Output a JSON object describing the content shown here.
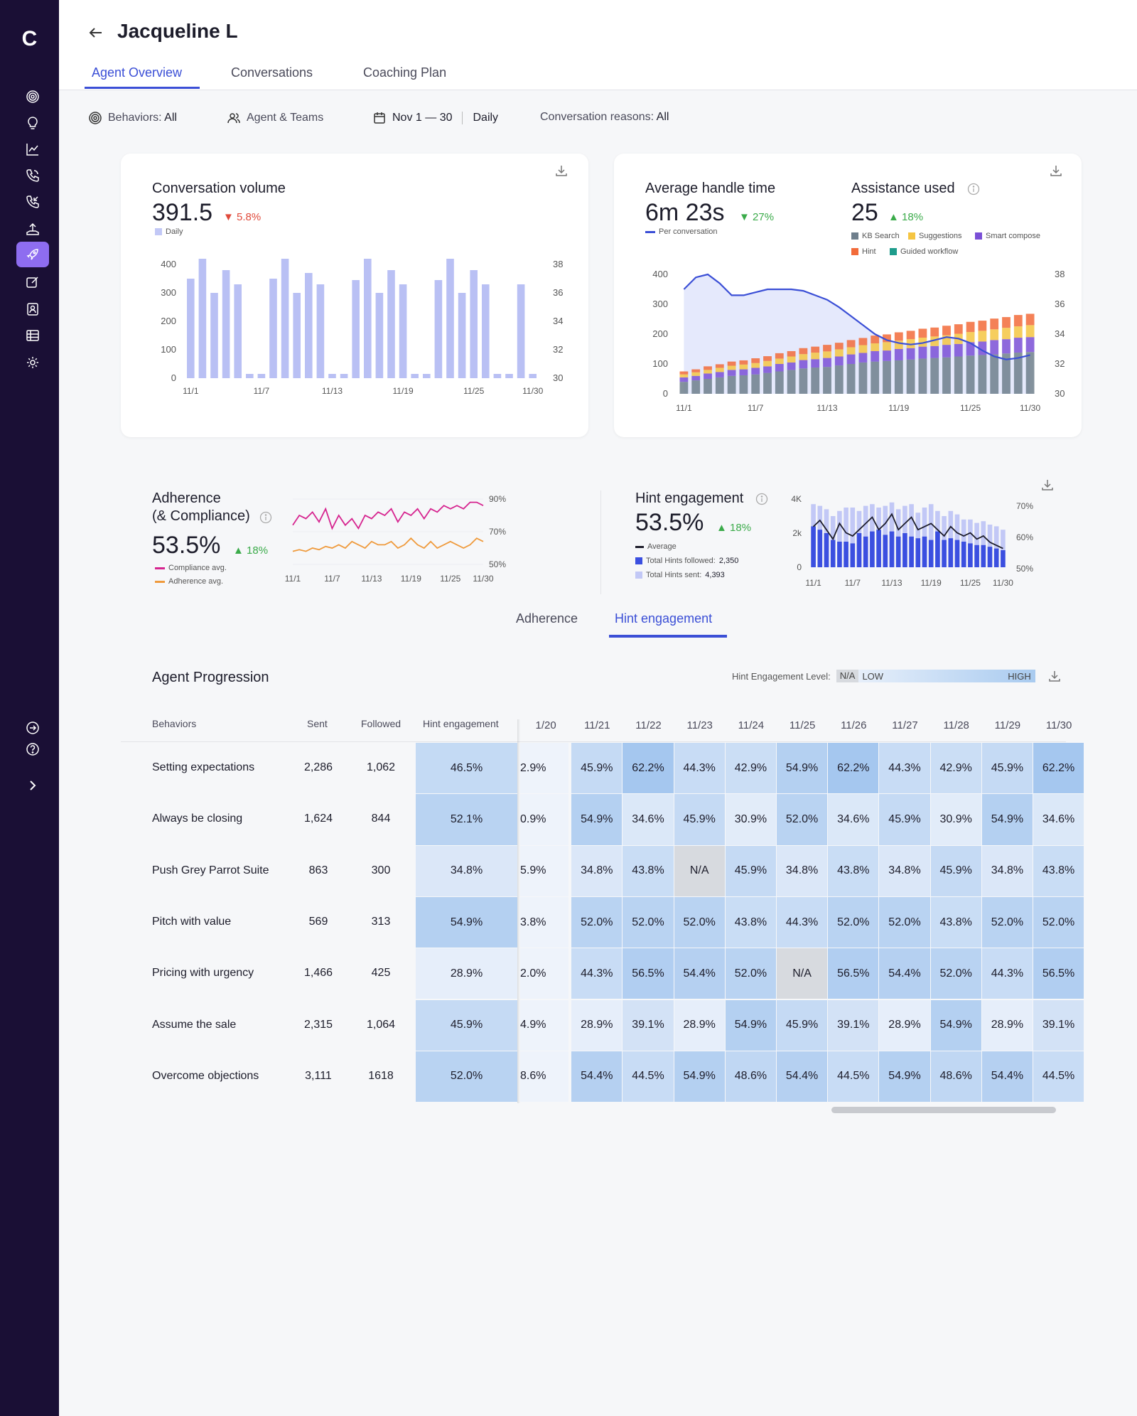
{
  "app": {
    "logo": "C"
  },
  "header": {
    "agent_name": "Jacqueline L",
    "tabs": [
      "Agent Overview",
      "Conversations",
      "Coaching Plan"
    ]
  },
  "filters": {
    "behaviors_label": "Behaviors:",
    "behaviors_value": "All",
    "agent_teams": "Agent & Teams",
    "date_range": "Nov 1 — 30",
    "granularity": "Daily",
    "reasons_label": "Conversation reasons:",
    "reasons_value": "All"
  },
  "conversation_volume": {
    "title": "Conversation volume",
    "value": "391.5",
    "delta": "5.8%",
    "legend": "Daily",
    "chart_data": {
      "type": "bar",
      "x": [
        "11/1",
        "11/2",
        "11/3",
        "11/4",
        "11/5",
        "11/6",
        "11/7",
        "11/8",
        "11/9",
        "11/10",
        "11/11",
        "11/12",
        "11/13",
        "11/14",
        "11/15",
        "11/16",
        "11/17",
        "11/18",
        "11/19",
        "11/20",
        "11/21",
        "11/22",
        "11/23",
        "11/24",
        "11/25",
        "11/26",
        "11/27",
        "11/28",
        "11/29",
        "11/30"
      ],
      "values": [
        350,
        420,
        300,
        380,
        330,
        15,
        15,
        350,
        420,
        300,
        370,
        330,
        15,
        15,
        345,
        420,
        300,
        380,
        330,
        15,
        15,
        345,
        420,
        300,
        380,
        330,
        15,
        15,
        330,
        15
      ],
      "xticks": [
        "11/1",
        "11/7",
        "11/13",
        "11/19",
        "11/25",
        "11/30"
      ],
      "yticks_left": [
        "400",
        "300",
        "200",
        "100",
        "0"
      ],
      "yticks_right": [
        "38",
        "36",
        "34",
        "32",
        "30"
      ],
      "ylim": [
        0,
        400
      ]
    }
  },
  "handle_time": {
    "title": "Average handle time",
    "value": "6m 23s",
    "delta": "27%",
    "legend": "Per conversation",
    "assist_title": "Assistance used",
    "assist_value": "25",
    "assist_delta": "18%",
    "legend_items": [
      "KB Search",
      "Suggestions",
      "Smart compose",
      "Hint",
      "Guided workflow"
    ],
    "colors": {
      "kb": "#6f7f8c",
      "suggestions": "#f5c542",
      "smart": "#7a4fd6",
      "hint": "#f26b3a",
      "guided": "#1e9c8c",
      "line": "#3b4fd6"
    },
    "chart_data": {
      "type": "bar",
      "x": [
        "11/1",
        "11/2",
        "11/3",
        "11/4",
        "11/5",
        "11/6",
        "11/7",
        "11/8",
        "11/9",
        "11/10",
        "11/11",
        "11/12",
        "11/13",
        "11/14",
        "11/15",
        "11/16",
        "11/17",
        "11/18",
        "11/19",
        "11/20",
        "11/21",
        "11/22",
        "11/23",
        "11/24",
        "11/25",
        "11/26",
        "11/27",
        "11/28",
        "11/29",
        "11/30"
      ],
      "series": [
        {
          "name": "KB Search",
          "values": [
            40,
            45,
            50,
            55,
            60,
            62,
            65,
            70,
            75,
            80,
            85,
            88,
            90,
            95,
            100,
            105,
            108,
            110,
            112,
            115,
            118,
            120,
            122,
            125,
            128,
            130,
            132,
            135,
            138,
            140
          ]
        },
        {
          "name": "Smart compose",
          "values": [
            15,
            15,
            18,
            18,
            20,
            20,
            22,
            22,
            25,
            25,
            28,
            28,
            30,
            30,
            32,
            32,
            35,
            35,
            38,
            38,
            40,
            40,
            42,
            42,
            45,
            45,
            48,
            48,
            50,
            50
          ]
        },
        {
          "name": "Suggestions",
          "values": [
            10,
            12,
            12,
            14,
            14,
            16,
            16,
            18,
            18,
            20,
            20,
            22,
            22,
            24,
            24,
            26,
            26,
            28,
            28,
            30,
            30,
            32,
            32,
            34,
            34,
            36,
            36,
            38,
            38,
            40
          ]
        },
        {
          "name": "Hint",
          "values": [
            10,
            10,
            12,
            12,
            14,
            14,
            16,
            16,
            18,
            18,
            20,
            20,
            22,
            22,
            24,
            24,
            26,
            26,
            28,
            28,
            30,
            30,
            32,
            32,
            34,
            34,
            36,
            36,
            38,
            38
          ]
        }
      ],
      "line_values": [
        37,
        37.8,
        38,
        37.4,
        36.6,
        36.6,
        36.8,
        37,
        37,
        37,
        36.9,
        36.6,
        36.3,
        35.8,
        35.2,
        34.6,
        34,
        33.6,
        33.4,
        33.3,
        33.4,
        33.6,
        33.8,
        33.7,
        33.4,
        32.9,
        32.5,
        32.3,
        32.4,
        32.6
      ],
      "xticks": [
        "11/1",
        "11/7",
        "11/13",
        "11/19",
        "11/25",
        "11/30"
      ],
      "yticks_left": [
        "400",
        "300",
        "200",
        "100",
        "0"
      ],
      "yticks_right": [
        "38",
        "36",
        "34",
        "32",
        "30"
      ],
      "ylim": [
        0,
        400
      ],
      "y2lim": [
        30,
        38
      ]
    }
  },
  "adherence": {
    "title1": "Adherence",
    "title2": "(& Compliance)",
    "value": "53.5%",
    "delta": "18%",
    "legend": [
      "Compliance avg.",
      "Adherence avg."
    ],
    "colors": {
      "compliance": "#d6248f",
      "adherence": "#ef9a3c"
    },
    "chart_data": {
      "type": "line",
      "x": [
        "11/1",
        "11/2",
        "11/3",
        "11/4",
        "11/5",
        "11/6",
        "11/7",
        "11/8",
        "11/9",
        "11/10",
        "11/11",
        "11/12",
        "11/13",
        "11/14",
        "11/15",
        "11/16",
        "11/17",
        "11/18",
        "11/19",
        "11/20",
        "11/21",
        "11/22",
        "11/23",
        "11/24",
        "11/25",
        "11/26",
        "11/27",
        "11/28",
        "11/29",
        "11/30"
      ],
      "series": [
        {
          "name": "Compliance avg.",
          "values": [
            74,
            80,
            78,
            82,
            76,
            84,
            72,
            80,
            74,
            78,
            72,
            80,
            78,
            82,
            80,
            84,
            76,
            82,
            80,
            84,
            78,
            84,
            82,
            86,
            84,
            86,
            84,
            88,
            88,
            86
          ]
        },
        {
          "name": "Adherence avg.",
          "values": [
            58,
            59,
            58,
            60,
            59,
            61,
            60,
            62,
            60,
            64,
            62,
            60,
            64,
            62,
            62,
            64,
            60,
            62,
            66,
            62,
            60,
            64,
            60,
            62,
            64,
            62,
            60,
            62,
            66,
            64
          ]
        }
      ],
      "xticks": [
        "11/1",
        "11/7",
        "11/13",
        "11/19",
        "11/25",
        "11/30"
      ],
      "yticks": [
        "90%",
        "70%",
        "50%"
      ],
      "ylim": [
        50,
        90
      ]
    }
  },
  "hint_engagement": {
    "title": "Hint engagement",
    "value": "53.5%",
    "delta": "18%",
    "legend_avg": "Average",
    "legend_followed_label": "Total Hints followed:",
    "legend_followed_value": "2,350",
    "legend_sent_label": "Total Hints sent:",
    "legend_sent_value": "4,393",
    "colors": {
      "followed": "#3b4fe0",
      "sent": "#c2c8f6",
      "avg": "#1d1d2b"
    },
    "chart_data": {
      "type": "bar",
      "x": [
        "11/1",
        "11/2",
        "11/3",
        "11/4",
        "11/5",
        "11/6",
        "11/7",
        "11/8",
        "11/9",
        "11/10",
        "11/11",
        "11/12",
        "11/13",
        "11/14",
        "11/15",
        "11/16",
        "11/17",
        "11/18",
        "11/19",
        "11/20",
        "11/21",
        "11/22",
        "11/23",
        "11/24",
        "11/25",
        "11/26",
        "11/27",
        "11/28",
        "11/29",
        "11/30"
      ],
      "series": [
        {
          "name": "Total Hints sent",
          "values": [
            3.7,
            3.6,
            3.4,
            3.0,
            3.3,
            3.5,
            3.5,
            3.3,
            3.6,
            3.7,
            3.5,
            3.6,
            3.8,
            3.4,
            3.6,
            3.7,
            3.2,
            3.5,
            3.7,
            3.3,
            3.0,
            3.3,
            3.1,
            2.8,
            2.8,
            2.6,
            2.7,
            2.5,
            2.4,
            2.2
          ]
        },
        {
          "name": "Total Hints followed",
          "values": [
            2.4,
            2.2,
            2.0,
            1.6,
            1.5,
            1.5,
            1.4,
            2.0,
            1.8,
            2.1,
            2.2,
            1.9,
            2.1,
            1.8,
            2.0,
            1.8,
            1.7,
            1.8,
            1.6,
            2.1,
            1.6,
            1.7,
            1.6,
            1.5,
            1.4,
            1.3,
            1.3,
            1.2,
            1.1,
            1.0
          ]
        }
      ],
      "avg_values": [
        63,
        65,
        62,
        59,
        64,
        61,
        60,
        62,
        64,
        66,
        62,
        64,
        67,
        62,
        64,
        66,
        62,
        63,
        64,
        62,
        60,
        63,
        61,
        60,
        61,
        59,
        60,
        58,
        57,
        56
      ],
      "xticks": [
        "11/1",
        "11/7",
        "11/13",
        "11/19",
        "11/25",
        "11/30"
      ],
      "yticks_left": [
        "4K",
        "2k",
        "0"
      ],
      "yticks_right": [
        "70%",
        "60%",
        "50%"
      ],
      "ylim": [
        0,
        4
      ],
      "y2lim": [
        50,
        70
      ]
    }
  },
  "subtabs": [
    "Adherence",
    "Hint engagement"
  ],
  "progression": {
    "title": "Agent Progression",
    "level_label": "Hint Engagement Level:",
    "level_na": "N/A",
    "level_low": "LOW",
    "level_high": "HIGH",
    "columns": [
      "Behaviors",
      "Sent",
      "Followed",
      "Hint engagement"
    ],
    "dates": [
      "1/20",
      "11/21",
      "11/22",
      "11/23",
      "11/24",
      "11/25",
      "11/26",
      "11/27",
      "11/28",
      "11/29",
      "11/30"
    ],
    "rows": [
      {
        "behavior": "Setting expectations",
        "sent": "2,286",
        "followed": "1,062",
        "engagement": "46.5%",
        "cells": [
          "2.9%",
          "45.9%",
          "62.2%",
          "44.3%",
          "42.9%",
          "54.9%",
          "62.2%",
          "44.3%",
          "42.9%",
          "45.9%",
          "62.2%"
        ]
      },
      {
        "behavior": "Always be closing",
        "sent": "1,624",
        "followed": "844",
        "engagement": "52.1%",
        "cells": [
          "0.9%",
          "54.9%",
          "34.6%",
          "45.9%",
          "30.9%",
          "52.0%",
          "34.6%",
          "45.9%",
          "30.9%",
          "54.9%",
          "34.6%"
        ]
      },
      {
        "behavior": "Push Grey Parrot Suite",
        "sent": "863",
        "followed": "300",
        "engagement": "34.8%",
        "cells": [
          "5.9%",
          "34.8%",
          "43.8%",
          "N/A",
          "45.9%",
          "34.8%",
          "43.8%",
          "34.8%",
          "45.9%",
          "34.8%",
          "43.8%"
        ]
      },
      {
        "behavior": "Pitch with value",
        "sent": "569",
        "followed": "313",
        "engagement": "54.9%",
        "cells": [
          "3.8%",
          "52.0%",
          "52.0%",
          "52.0%",
          "43.8%",
          "44.3%",
          "52.0%",
          "52.0%",
          "43.8%",
          "52.0%",
          "52.0%"
        ]
      },
      {
        "behavior": "Pricing with urgency",
        "sent": "1,466",
        "followed": "425",
        "engagement": "28.9%",
        "cells": [
          "2.0%",
          "44.3%",
          "56.5%",
          "54.4%",
          "52.0%",
          "N/A",
          "56.5%",
          "54.4%",
          "52.0%",
          "44.3%",
          "56.5%"
        ]
      },
      {
        "behavior": "Assume the sale",
        "sent": "2,315",
        "followed": "1,064",
        "engagement": "45.9%",
        "cells": [
          "4.9%",
          "28.9%",
          "39.1%",
          "28.9%",
          "54.9%",
          "45.9%",
          "39.1%",
          "28.9%",
          "54.9%",
          "28.9%",
          "39.1%"
        ]
      },
      {
        "behavior": "Overcome objections",
        "sent": "3,111",
        "followed": "1618",
        "engagement": "52.0%",
        "cells": [
          "8.6%",
          "54.4%",
          "44.5%",
          "54.9%",
          "48.6%",
          "54.4%",
          "44.5%",
          "54.9%",
          "48.6%",
          "54.4%",
          "44.5%"
        ]
      }
    ]
  }
}
